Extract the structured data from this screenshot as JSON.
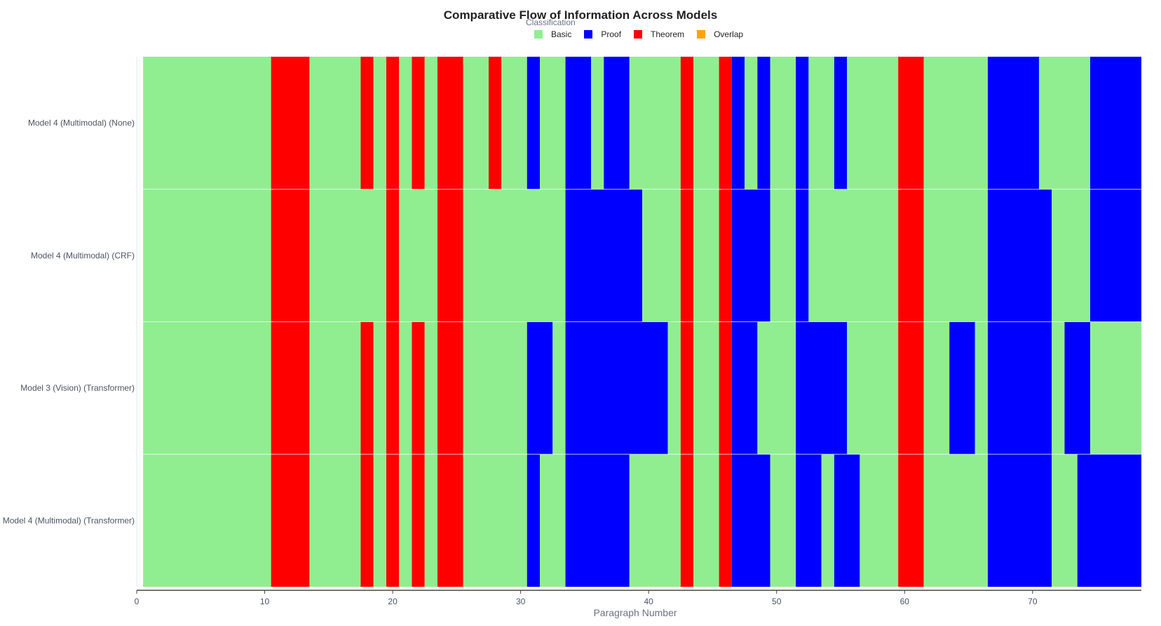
{
  "chart_data": {
    "type": "bar",
    "title": "Comparative Flow of Information Across Models",
    "legend_title": "Classification",
    "legend_position": "top-center",
    "xlabel": "Paragraph Number",
    "ylabel": "",
    "xlim": [
      0,
      78.5
    ],
    "x_ticks": [
      0,
      10,
      20,
      30,
      40,
      50,
      60,
      70
    ],
    "grid": false,
    "classes": [
      {
        "name": "Basic",
        "color": "#90ee90"
      },
      {
        "name": "Proof",
        "color": "#0000ff"
      },
      {
        "name": "Theorem",
        "color": "#ff0000"
      },
      {
        "name": "Overlap",
        "color": "#ffa500"
      }
    ],
    "rows": [
      {
        "label": "Model 4 (Multimodal) (None)",
        "segments": [
          {
            "start": 0.5,
            "end": 10.5,
            "class": "Basic"
          },
          {
            "start": 10.5,
            "end": 13.5,
            "class": "Theorem"
          },
          {
            "start": 13.5,
            "end": 17.5,
            "class": "Basic"
          },
          {
            "start": 17.5,
            "end": 18.5,
            "class": "Theorem"
          },
          {
            "start": 18.5,
            "end": 19.5,
            "class": "Basic"
          },
          {
            "start": 19.5,
            "end": 20.5,
            "class": "Theorem"
          },
          {
            "start": 20.5,
            "end": 21.5,
            "class": "Basic"
          },
          {
            "start": 21.5,
            "end": 22.5,
            "class": "Theorem"
          },
          {
            "start": 22.5,
            "end": 23.5,
            "class": "Basic"
          },
          {
            "start": 23.5,
            "end": 25.5,
            "class": "Theorem"
          },
          {
            "start": 25.5,
            "end": 27.5,
            "class": "Basic"
          },
          {
            "start": 27.5,
            "end": 28.5,
            "class": "Theorem"
          },
          {
            "start": 28.5,
            "end": 30.5,
            "class": "Basic"
          },
          {
            "start": 30.5,
            "end": 31.5,
            "class": "Proof"
          },
          {
            "start": 31.5,
            "end": 33.5,
            "class": "Basic"
          },
          {
            "start": 33.5,
            "end": 35.5,
            "class": "Proof"
          },
          {
            "start": 35.5,
            "end": 36.5,
            "class": "Basic"
          },
          {
            "start": 36.5,
            "end": 38.5,
            "class": "Proof"
          },
          {
            "start": 38.5,
            "end": 42.5,
            "class": "Basic"
          },
          {
            "start": 42.5,
            "end": 43.5,
            "class": "Theorem"
          },
          {
            "start": 43.5,
            "end": 45.5,
            "class": "Basic"
          },
          {
            "start": 45.5,
            "end": 46.5,
            "class": "Theorem"
          },
          {
            "start": 46.5,
            "end": 47.5,
            "class": "Proof"
          },
          {
            "start": 47.5,
            "end": 48.5,
            "class": "Basic"
          },
          {
            "start": 48.5,
            "end": 49.5,
            "class": "Proof"
          },
          {
            "start": 49.5,
            "end": 51.5,
            "class": "Basic"
          },
          {
            "start": 51.5,
            "end": 52.5,
            "class": "Proof"
          },
          {
            "start": 52.5,
            "end": 54.5,
            "class": "Basic"
          },
          {
            "start": 54.5,
            "end": 55.5,
            "class": "Proof"
          },
          {
            "start": 55.5,
            "end": 59.5,
            "class": "Basic"
          },
          {
            "start": 59.5,
            "end": 61.5,
            "class": "Theorem"
          },
          {
            "start": 61.5,
            "end": 66.5,
            "class": "Basic"
          },
          {
            "start": 66.5,
            "end": 70.5,
            "class": "Proof"
          },
          {
            "start": 70.5,
            "end": 74.5,
            "class": "Basic"
          },
          {
            "start": 74.5,
            "end": 78.5,
            "class": "Proof"
          }
        ]
      },
      {
        "label": "Model 4 (Multimodal) (CRF)",
        "segments": [
          {
            "start": 0.5,
            "end": 10.5,
            "class": "Basic"
          },
          {
            "start": 10.5,
            "end": 13.5,
            "class": "Theorem"
          },
          {
            "start": 13.5,
            "end": 19.5,
            "class": "Basic"
          },
          {
            "start": 19.5,
            "end": 20.5,
            "class": "Theorem"
          },
          {
            "start": 20.5,
            "end": 23.5,
            "class": "Basic"
          },
          {
            "start": 23.5,
            "end": 25.5,
            "class": "Theorem"
          },
          {
            "start": 25.5,
            "end": 33.5,
            "class": "Basic"
          },
          {
            "start": 33.5,
            "end": 39.5,
            "class": "Proof"
          },
          {
            "start": 39.5,
            "end": 42.5,
            "class": "Basic"
          },
          {
            "start": 42.5,
            "end": 43.5,
            "class": "Theorem"
          },
          {
            "start": 43.5,
            "end": 45.5,
            "class": "Basic"
          },
          {
            "start": 45.5,
            "end": 46.5,
            "class": "Theorem"
          },
          {
            "start": 46.5,
            "end": 49.5,
            "class": "Proof"
          },
          {
            "start": 49.5,
            "end": 51.5,
            "class": "Basic"
          },
          {
            "start": 51.5,
            "end": 52.5,
            "class": "Proof"
          },
          {
            "start": 52.5,
            "end": 59.5,
            "class": "Basic"
          },
          {
            "start": 59.5,
            "end": 61.5,
            "class": "Theorem"
          },
          {
            "start": 61.5,
            "end": 66.5,
            "class": "Basic"
          },
          {
            "start": 66.5,
            "end": 71.5,
            "class": "Proof"
          },
          {
            "start": 71.5,
            "end": 74.5,
            "class": "Basic"
          },
          {
            "start": 74.5,
            "end": 78.5,
            "class": "Proof"
          }
        ]
      },
      {
        "label": "Model 3 (Vision) (Transformer)",
        "segments": [
          {
            "start": 0.5,
            "end": 10.5,
            "class": "Basic"
          },
          {
            "start": 10.5,
            "end": 13.5,
            "class": "Theorem"
          },
          {
            "start": 13.5,
            "end": 17.5,
            "class": "Basic"
          },
          {
            "start": 17.5,
            "end": 18.5,
            "class": "Theorem"
          },
          {
            "start": 18.5,
            "end": 19.5,
            "class": "Basic"
          },
          {
            "start": 19.5,
            "end": 20.5,
            "class": "Theorem"
          },
          {
            "start": 20.5,
            "end": 21.5,
            "class": "Basic"
          },
          {
            "start": 21.5,
            "end": 22.5,
            "class": "Theorem"
          },
          {
            "start": 22.5,
            "end": 23.5,
            "class": "Basic"
          },
          {
            "start": 23.5,
            "end": 25.5,
            "class": "Theorem"
          },
          {
            "start": 25.5,
            "end": 30.5,
            "class": "Basic"
          },
          {
            "start": 30.5,
            "end": 32.5,
            "class": "Proof"
          },
          {
            "start": 32.5,
            "end": 33.5,
            "class": "Basic"
          },
          {
            "start": 33.5,
            "end": 41.5,
            "class": "Proof"
          },
          {
            "start": 41.5,
            "end": 42.5,
            "class": "Basic"
          },
          {
            "start": 42.5,
            "end": 43.5,
            "class": "Theorem"
          },
          {
            "start": 43.5,
            "end": 45.5,
            "class": "Basic"
          },
          {
            "start": 45.5,
            "end": 46.5,
            "class": "Theorem"
          },
          {
            "start": 46.5,
            "end": 48.5,
            "class": "Proof"
          },
          {
            "start": 48.5,
            "end": 51.5,
            "class": "Basic"
          },
          {
            "start": 51.5,
            "end": 55.5,
            "class": "Proof"
          },
          {
            "start": 55.5,
            "end": 59.5,
            "class": "Basic"
          },
          {
            "start": 59.5,
            "end": 61.5,
            "class": "Theorem"
          },
          {
            "start": 61.5,
            "end": 63.5,
            "class": "Basic"
          },
          {
            "start": 63.5,
            "end": 65.5,
            "class": "Proof"
          },
          {
            "start": 65.5,
            "end": 66.5,
            "class": "Basic"
          },
          {
            "start": 66.5,
            "end": 71.5,
            "class": "Proof"
          },
          {
            "start": 71.5,
            "end": 72.5,
            "class": "Basic"
          },
          {
            "start": 72.5,
            "end": 74.5,
            "class": "Proof"
          },
          {
            "start": 74.5,
            "end": 78.5,
            "class": "Basic"
          }
        ]
      },
      {
        "label": "Model 4 (Multimodal) (Transformer)",
        "segments": [
          {
            "start": 0.5,
            "end": 10.5,
            "class": "Basic"
          },
          {
            "start": 10.5,
            "end": 13.5,
            "class": "Theorem"
          },
          {
            "start": 13.5,
            "end": 17.5,
            "class": "Basic"
          },
          {
            "start": 17.5,
            "end": 18.5,
            "class": "Theorem"
          },
          {
            "start": 18.5,
            "end": 19.5,
            "class": "Basic"
          },
          {
            "start": 19.5,
            "end": 20.5,
            "class": "Theorem"
          },
          {
            "start": 20.5,
            "end": 21.5,
            "class": "Basic"
          },
          {
            "start": 21.5,
            "end": 22.5,
            "class": "Theorem"
          },
          {
            "start": 22.5,
            "end": 23.5,
            "class": "Basic"
          },
          {
            "start": 23.5,
            "end": 25.5,
            "class": "Theorem"
          },
          {
            "start": 25.5,
            "end": 30.5,
            "class": "Basic"
          },
          {
            "start": 30.5,
            "end": 31.5,
            "class": "Proof"
          },
          {
            "start": 31.5,
            "end": 33.5,
            "class": "Basic"
          },
          {
            "start": 33.5,
            "end": 38.5,
            "class": "Proof"
          },
          {
            "start": 38.5,
            "end": 42.5,
            "class": "Basic"
          },
          {
            "start": 42.5,
            "end": 43.5,
            "class": "Theorem"
          },
          {
            "start": 43.5,
            "end": 45.5,
            "class": "Basic"
          },
          {
            "start": 45.5,
            "end": 46.5,
            "class": "Theorem"
          },
          {
            "start": 46.5,
            "end": 49.5,
            "class": "Proof"
          },
          {
            "start": 49.5,
            "end": 51.5,
            "class": "Basic"
          },
          {
            "start": 51.5,
            "end": 53.5,
            "class": "Proof"
          },
          {
            "start": 53.5,
            "end": 54.5,
            "class": "Basic"
          },
          {
            "start": 54.5,
            "end": 56.5,
            "class": "Proof"
          },
          {
            "start": 56.5,
            "end": 59.5,
            "class": "Basic"
          },
          {
            "start": 59.5,
            "end": 61.5,
            "class": "Theorem"
          },
          {
            "start": 61.5,
            "end": 66.5,
            "class": "Basic"
          },
          {
            "start": 66.5,
            "end": 71.5,
            "class": "Proof"
          },
          {
            "start": 71.5,
            "end": 73.5,
            "class": "Basic"
          },
          {
            "start": 73.5,
            "end": 78.5,
            "class": "Proof"
          }
        ]
      }
    ]
  }
}
